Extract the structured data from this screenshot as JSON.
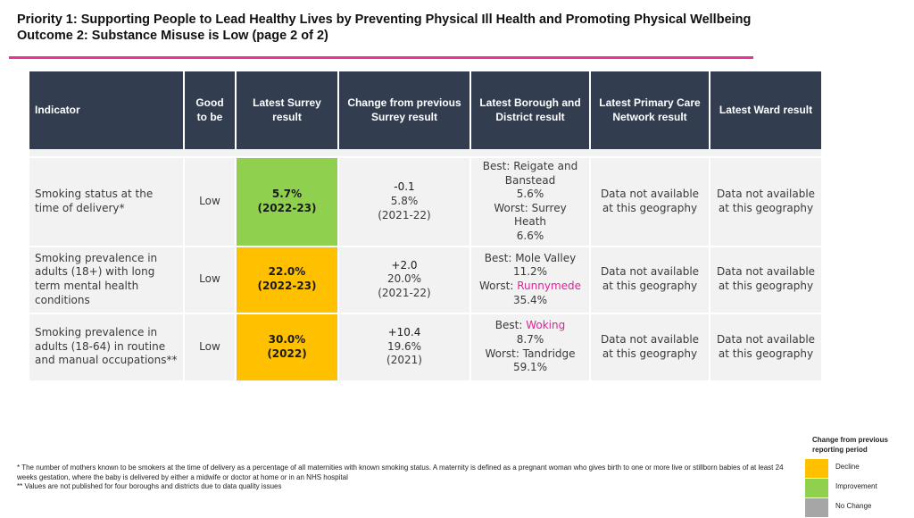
{
  "title": {
    "line1": "Priority 1: Supporting People to Lead Healthy Lives by Preventing Physical Ill Health and Promoting Physical Wellbeing",
    "line2": "Outcome 2: Substance Misuse is Low (page 2 of 2)"
  },
  "headers": {
    "indicator": "Indicator",
    "good": "Good to be",
    "surrey": "Latest Surrey result",
    "change": "Change from previous Surrey result",
    "borough": "Latest Borough and District result",
    "pcn": "Latest Primary Care Network result",
    "ward": "Latest Ward result"
  },
  "rows": [
    {
      "indicator": "Smoking status at the time of delivery*",
      "good": "Low",
      "surrey_value": "5.7%",
      "surrey_period": "(2022-23)",
      "change": "-0.1",
      "prev_value": "5.8%",
      "prev_period": "(2021-22)",
      "best_label": "Best: ",
      "best_name": "Reigate and Banstead",
      "best_value": "5.6%",
      "worst_label": "Worst: ",
      "worst_name": "Surrey Heath",
      "worst_value": "6.6%",
      "pcn": "Data not available at this geography",
      "ward": "Data not available at this geography"
    },
    {
      "indicator": "Smoking prevalence in adults (18+) with long term mental health conditions",
      "good": "Low",
      "surrey_value": "22.0%",
      "surrey_period": "(2022-23)",
      "change": "+2.0",
      "prev_value": "20.0%",
      "prev_period": "(2021-22)",
      "best_label": "Best: ",
      "best_name": "Mole Valley",
      "best_value": "11.2%",
      "worst_label": "Worst: ",
      "worst_name": "Runnymede",
      "worst_value": "35.4%",
      "pcn": "Data not available at this geography",
      "ward": "Data not available at this geography"
    },
    {
      "indicator": "Smoking prevalence in adults (18-64) in routine and manual occupations**",
      "good": "Low",
      "surrey_value": "30.0%",
      "surrey_period": "(2022)",
      "change": "+10.4",
      "prev_value": "19.6%",
      "prev_period": "(2021)",
      "best_label": "Best: ",
      "best_name": "Woking",
      "best_value": "8.7%",
      "worst_label": "Worst: ",
      "worst_name": "Tandridge",
      "worst_value": "59.1%",
      "pcn": "Data not available at this geography",
      "ward": "Data not available at this geography"
    }
  ],
  "footnotes": {
    "note1": "* The number of mothers known to be smokers at the time of delivery as a percentage of all maternities with known smoking status. A maternity is defined as a pregnant woman who gives birth to one or more live or stillborn babies of at least 24 weeks gestation, where the baby is delivered by either a midwife or doctor at home or in an NHS hospital",
    "note2": "** Values are not published for four boroughs and districts due to data quality issues"
  },
  "legend": {
    "title": "Change from previous reporting period",
    "items": [
      {
        "label": "Decline",
        "color": "#ffc000"
      },
      {
        "label": "Improvement",
        "color": "#8fd14f"
      },
      {
        "label": "No Change",
        "color": "#a6a6a6"
      }
    ]
  },
  "colors": {
    "accent_rule": "#e8339a",
    "header_bg": "#323d4f",
    "highlight_text": "#e0219a"
  }
}
